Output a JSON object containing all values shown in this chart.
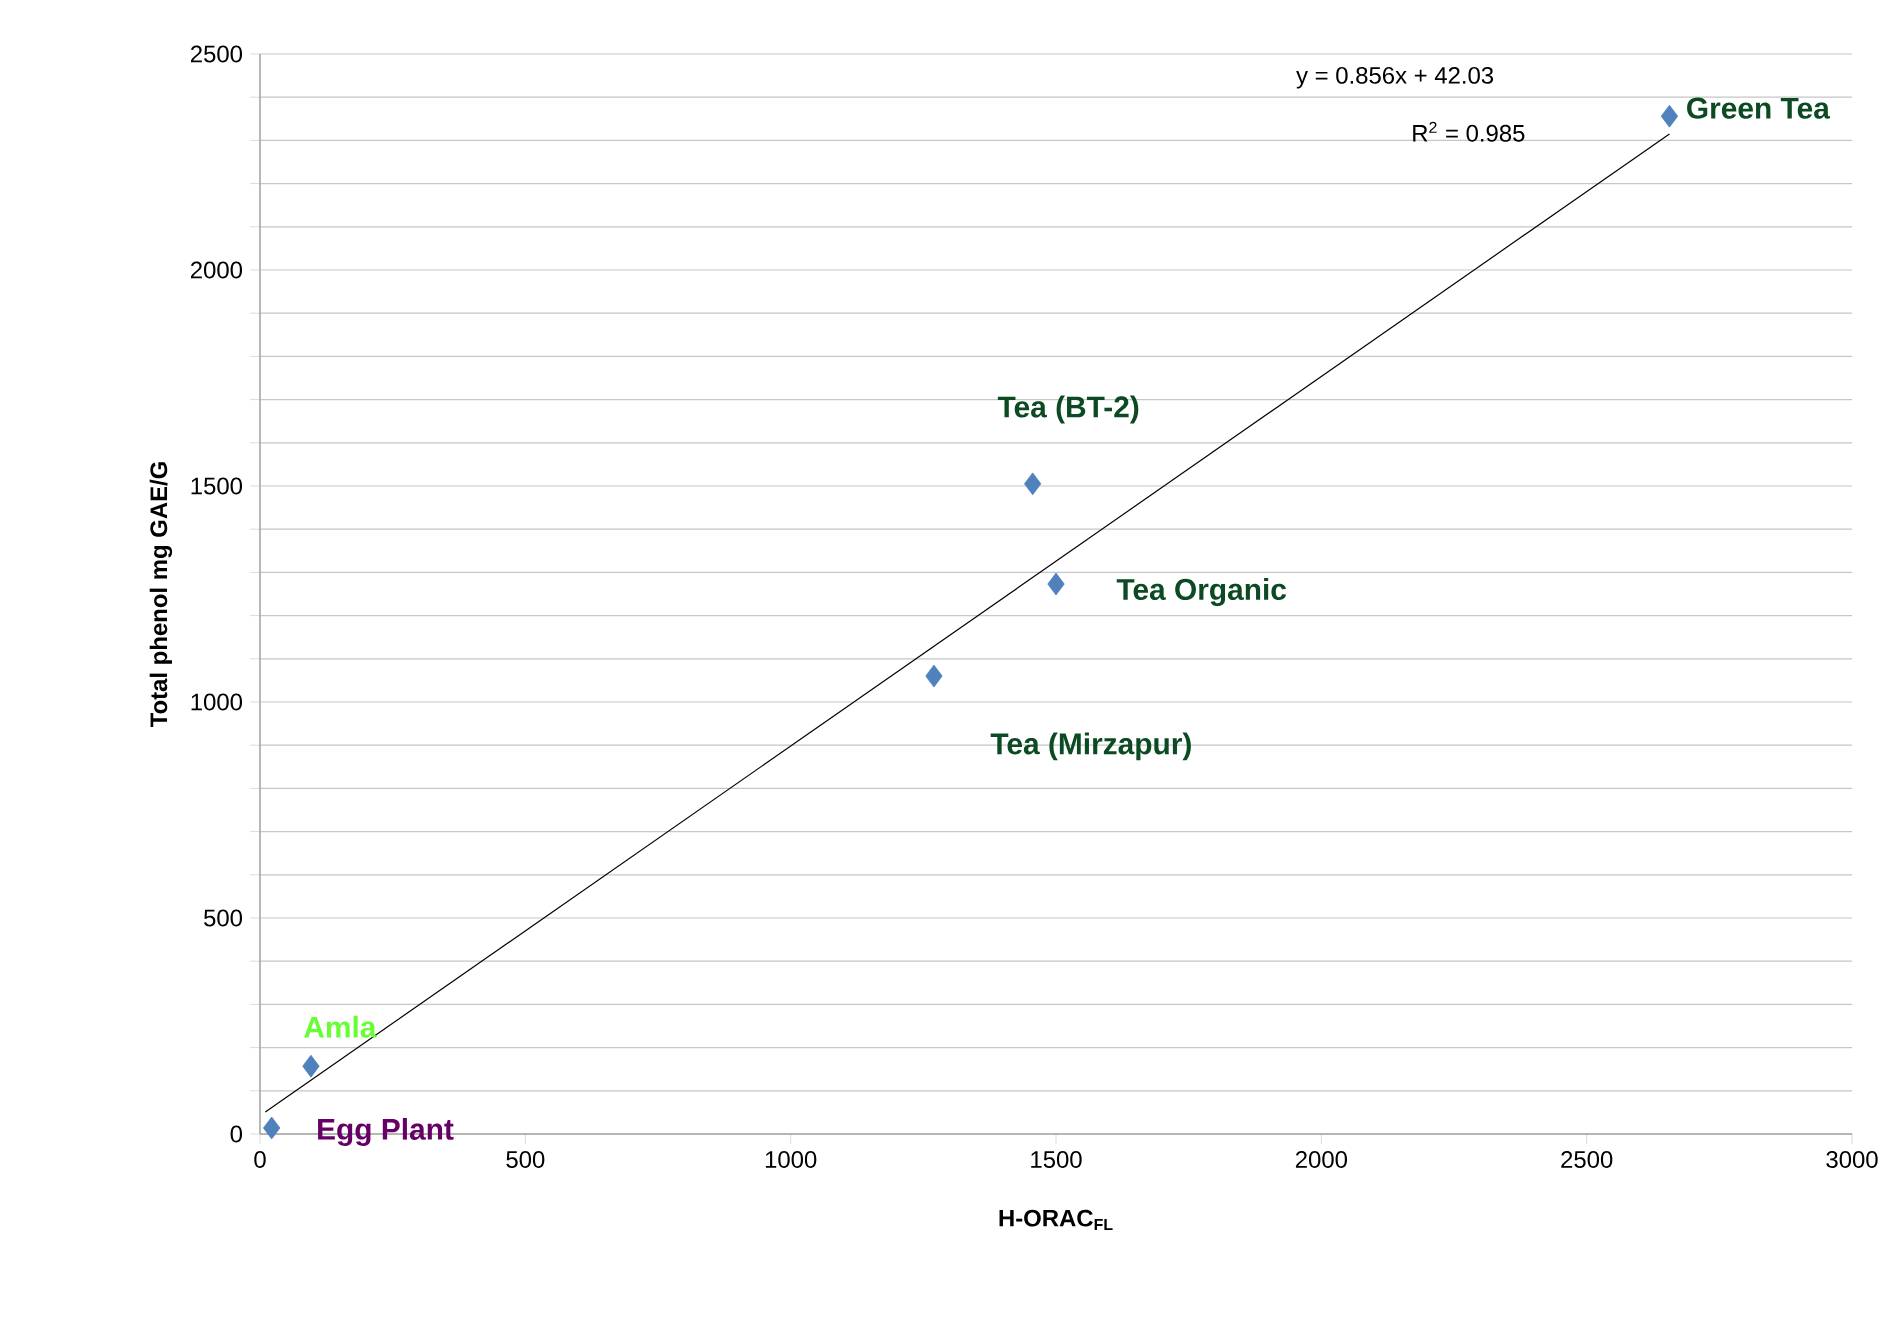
{
  "chart_data": {
    "type": "scatter",
    "xlabel": "H-ORAC$_{FL}$",
    "ylabel": "Total phenol mg GAE/G",
    "xlim": [
      0,
      3000
    ],
    "xticks": [
      0,
      500,
      1000,
      1500,
      2000,
      2500,
      3000
    ],
    "ylim": [
      0,
      2500
    ],
    "yticks": [
      0,
      {
        "value": 100,
        "label": null
      },
      {
        "value": 200,
        "label": null
      },
      {
        "value": 300,
        "label": null
      },
      {
        "value": 400,
        "label": null
      },
      500,
      {
        "value": 600,
        "label": null
      },
      {
        "value": 700,
        "label": null
      },
      {
        "value": 800,
        "label": null
      },
      {
        "value": 900,
        "label": null
      },
      1000,
      {
        "value": 1100,
        "label": null
      },
      {
        "value": 1200,
        "label": null
      },
      {
        "value": 1300,
        "label": null
      },
      {
        "value": 1400,
        "label": null
      },
      1500,
      {
        "value": 1600,
        "label": null
      },
      {
        "value": 1700,
        "label": null
      },
      {
        "value": 1800,
        "label": null
      },
      {
        "value": 1900,
        "label": null
      },
      2000,
      {
        "value": 2100,
        "label": null
      },
      {
        "value": 2200,
        "label": null
      },
      {
        "value": 2300,
        "label": null
      },
      {
        "value": 2400,
        "label": null
      },
      2500
    ],
    "grid": "y",
    "series": [
      {
        "marker": "diamond",
        "color": "#4f81bd",
        "x": [
          22,
          96,
          1270,
          1456,
          1500,
          2656
        ],
        "values": [
          14,
          157,
          1060,
          1505,
          1273,
          2356
        ]
      },
      {
        "type": "line",
        "marker": "none",
        "color": "#000000",
        "x": [
          10,
          2656
        ],
        "values": [
          51,
          2315
        ]
      }
    ],
    "annotations": [
      {
        "text": "Egg Plant",
        "x": 22,
        "y": 14
      },
      {
        "text": "Amla",
        "x": 96,
        "y": 157
      },
      {
        "text": "Tea (Mirzapur)",
        "x": 1270,
        "y": 1060
      },
      {
        "text": "Tea (BT-2)",
        "x": 1456,
        "y": 1505
      },
      {
        "text": "Tea Organic",
        "x": 1500,
        "y": 1273
      },
      {
        "text": "Green Tea",
        "x": 2656,
        "y": 2356
      },
      "y = 0.856x + 42.03",
      "R$^{2}$ = 0.985"
    ]
  }
}
